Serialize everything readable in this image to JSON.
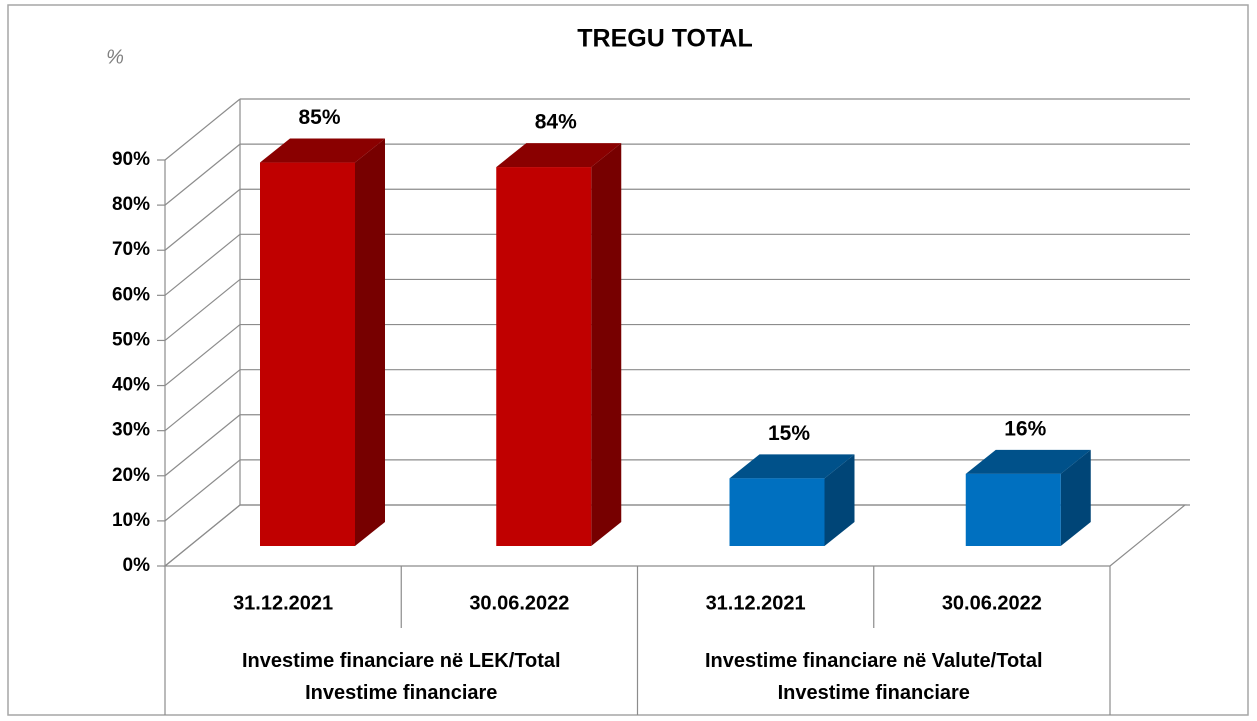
{
  "chart_data": {
    "type": "bar3d",
    "title": "TREGU TOTAL",
    "y_label": "%",
    "categories": [
      "31.12.2021",
      "30.06.2022",
      "31.12.2021",
      "30.06.2022"
    ],
    "groups": [
      "Investime financiare në LEK/Total Investime financiare",
      "Investime financiare në Valute/Total Investime financiare"
    ],
    "values": [
      85,
      84,
      15,
      16
    ],
    "value_labels": [
      "85%",
      "84%",
      "15%",
      "16%"
    ],
    "colors": [
      "#c00000",
      "#c00000",
      "#0070c0",
      "#0070c0"
    ],
    "ylim": [
      0,
      90
    ],
    "yticks": [
      {
        "value": 0,
        "label": "0%"
      },
      {
        "value": 10,
        "label": "10%"
      },
      {
        "value": 20,
        "label": "20%"
      },
      {
        "value": 30,
        "label": "30%"
      },
      {
        "value": 40,
        "label": "40%"
      },
      {
        "value": 50,
        "label": "50%"
      },
      {
        "value": 60,
        "label": "60%"
      },
      {
        "value": 70,
        "label": "70%"
      },
      {
        "value": 80,
        "label": "80%"
      },
      {
        "value": 90,
        "label": "90%"
      }
    ],
    "grid": true
  }
}
